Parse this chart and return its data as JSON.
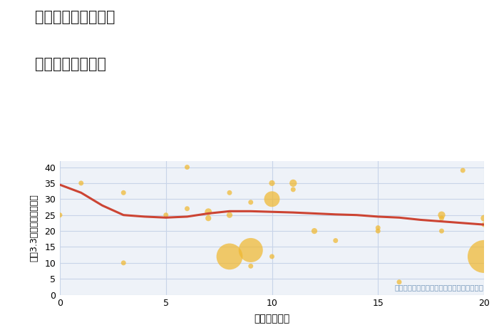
{
  "title_line1": "愛知県碧南市岬町の",
  "title_line2": "駅距離別土地価格",
  "xlabel": "駅距離（分）",
  "ylabel": "坪（3.3㎡）単価（万円）",
  "annotation": "円の大きさは、取引のあった物件面積を示す",
  "background_color": "#ffffff",
  "plot_bg_color": "#eef2f8",
  "grid_color": "#c8d4e8",
  "scatter_color": "#f0b830",
  "scatter_alpha": 0.72,
  "line_color": "#cc4433",
  "line_width": 2.2,
  "xlim": [
    0,
    20
  ],
  "ylim": [
    0,
    42
  ],
  "xticks": [
    0,
    5,
    10,
    15,
    20
  ],
  "yticks": [
    0,
    5,
    10,
    15,
    20,
    25,
    30,
    35,
    40
  ],
  "scatter_x": [
    0,
    1,
    3,
    3,
    5,
    6,
    6,
    7,
    7,
    8,
    8,
    8,
    9,
    9,
    9,
    10,
    10,
    10,
    11,
    11,
    12,
    13,
    15,
    15,
    16,
    18,
    18,
    18,
    19,
    20,
    20,
    20
  ],
  "scatter_y": [
    25,
    35,
    32,
    10,
    25,
    40,
    27,
    26,
    24,
    32,
    25,
    12,
    29,
    9,
    14,
    35,
    30,
    12,
    35,
    33,
    20,
    17,
    20,
    21,
    4,
    25,
    24,
    20,
    39,
    24,
    12,
    22
  ],
  "scatter_size": [
    25,
    25,
    25,
    25,
    25,
    25,
    25,
    50,
    35,
    25,
    35,
    700,
    25,
    25,
    600,
    35,
    250,
    25,
    55,
    25,
    35,
    25,
    25,
    25,
    25,
    55,
    25,
    25,
    25,
    45,
    1100,
    25
  ],
  "trend_x": [
    0,
    1,
    2,
    3,
    4,
    5,
    6,
    7,
    8,
    9,
    10,
    11,
    12,
    13,
    14,
    15,
    16,
    17,
    18,
    19,
    20
  ],
  "trend_y": [
    34.5,
    32.0,
    28.0,
    25.0,
    24.5,
    24.2,
    24.5,
    25.5,
    26.2,
    26.2,
    26.0,
    25.8,
    25.5,
    25.2,
    25.0,
    24.5,
    24.2,
    23.5,
    23.0,
    22.5,
    22.0
  ]
}
